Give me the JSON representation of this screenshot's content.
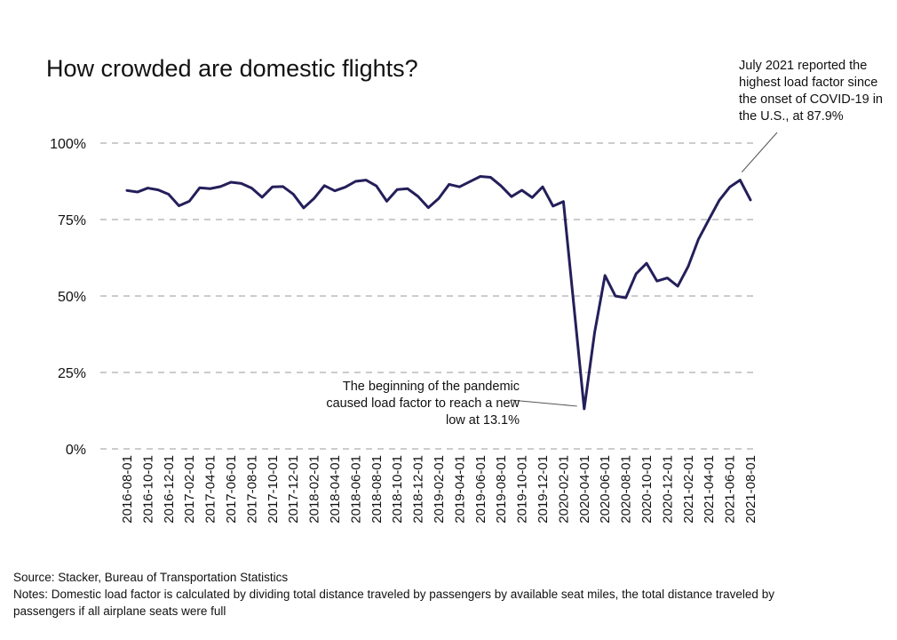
{
  "title": "How crowded are domestic flights?",
  "annotations": {
    "peak": "July 2021 reported the highest load factor since the onset of COVID-19 in the U.S., at 87.9%",
    "low": "The beginning of the pandemic caused load factor to reach a new low at 13.1%"
  },
  "footer": {
    "source": "Source:  Stacker, Bureau of Transportation Statistics",
    "notes": "Notes: Domestic load factor is calculated by dividing total distance traveled by passengers by available seat miles, the total distance traveled by passengers if all airplane seats were full"
  },
  "chart_data": {
    "type": "line",
    "title": "How crowded are domestic flights?",
    "xlabel": "",
    "ylabel": "",
    "ylim": [
      0,
      100
    ],
    "y_ticks": [
      "0%",
      "25%",
      "50%",
      "75%",
      "100%"
    ],
    "y_tick_values": [
      0,
      25,
      50,
      75,
      100
    ],
    "grid": "horizontal dashed",
    "line_color": "#241f5a",
    "x_tick_labels": [
      "2016-08-01",
      "2016-10-01",
      "2016-12-01",
      "2017-02-01",
      "2017-04-01",
      "2017-06-01",
      "2017-08-01",
      "2017-10-01",
      "2017-12-01",
      "2018-02-01",
      "2018-04-01",
      "2018-06-01",
      "2018-08-01",
      "2018-10-01",
      "2018-12-01",
      "2019-02-01",
      "2019-04-01",
      "2019-06-01",
      "2019-08-01",
      "2019-10-01",
      "2019-12-01",
      "2020-02-01",
      "2020-04-01",
      "2020-06-01",
      "2020-08-01",
      "2020-10-01",
      "2020-12-01",
      "2021-02-01",
      "2021-04-01",
      "2021-06-01",
      "2021-08-01"
    ],
    "x": [
      "2016-08-01",
      "2016-09-01",
      "2016-10-01",
      "2016-11-01",
      "2016-12-01",
      "2017-01-01",
      "2017-02-01",
      "2017-03-01",
      "2017-04-01",
      "2017-05-01",
      "2017-06-01",
      "2017-07-01",
      "2017-08-01",
      "2017-09-01",
      "2017-10-01",
      "2017-11-01",
      "2017-12-01",
      "2018-01-01",
      "2018-02-01",
      "2018-03-01",
      "2018-04-01",
      "2018-05-01",
      "2018-06-01",
      "2018-07-01",
      "2018-08-01",
      "2018-09-01",
      "2018-10-01",
      "2018-11-01",
      "2018-12-01",
      "2019-01-01",
      "2019-02-01",
      "2019-03-01",
      "2019-04-01",
      "2019-05-01",
      "2019-06-01",
      "2019-07-01",
      "2019-08-01",
      "2019-09-01",
      "2019-10-01",
      "2019-11-01",
      "2019-12-01",
      "2020-01-01",
      "2020-02-01",
      "2020-03-01",
      "2020-04-01",
      "2020-05-01",
      "2020-06-01",
      "2020-07-01",
      "2020-08-01",
      "2020-09-01",
      "2020-10-01",
      "2020-11-01",
      "2020-12-01",
      "2021-01-01",
      "2021-02-01",
      "2021-03-01",
      "2021-04-01",
      "2021-05-01",
      "2021-06-01",
      "2021-07-01",
      "2021-08-01"
    ],
    "series": [
      {
        "values": [
          84.5,
          84,
          85.3,
          84.7,
          83.3,
          79.5,
          81,
          85.4,
          85.1,
          85.8,
          87.2,
          86.8,
          85.3,
          82.3,
          85.7,
          85.8,
          83.3,
          78.8,
          81.9,
          86.1,
          84.4,
          85.6,
          87.5,
          87.9,
          86,
          81,
          84.8,
          85.1,
          82.6,
          78.9,
          81.9,
          86.5,
          85.7,
          87.4,
          89.1,
          88.8,
          86,
          82.5,
          84.6,
          82.2,
          85.7,
          79.4,
          80.9,
          47,
          13.1,
          38,
          56.7,
          50,
          49.4,
          57.3,
          60.7,
          54.9,
          55.9,
          53.2,
          59.6,
          68.6,
          75,
          81.3,
          85.6,
          87.9,
          81.4
        ]
      }
    ],
    "annotations": [
      {
        "x": "2021-07-01",
        "y": 87.9,
        "text": "July 2021 reported the highest load factor since the onset of COVID-19 in the U.S., at 87.9%"
      },
      {
        "x": "2020-04-01",
        "y": 13.1,
        "text": "The beginning of the pandemic caused load factor to reach a new low at 13.1%"
      }
    ]
  }
}
